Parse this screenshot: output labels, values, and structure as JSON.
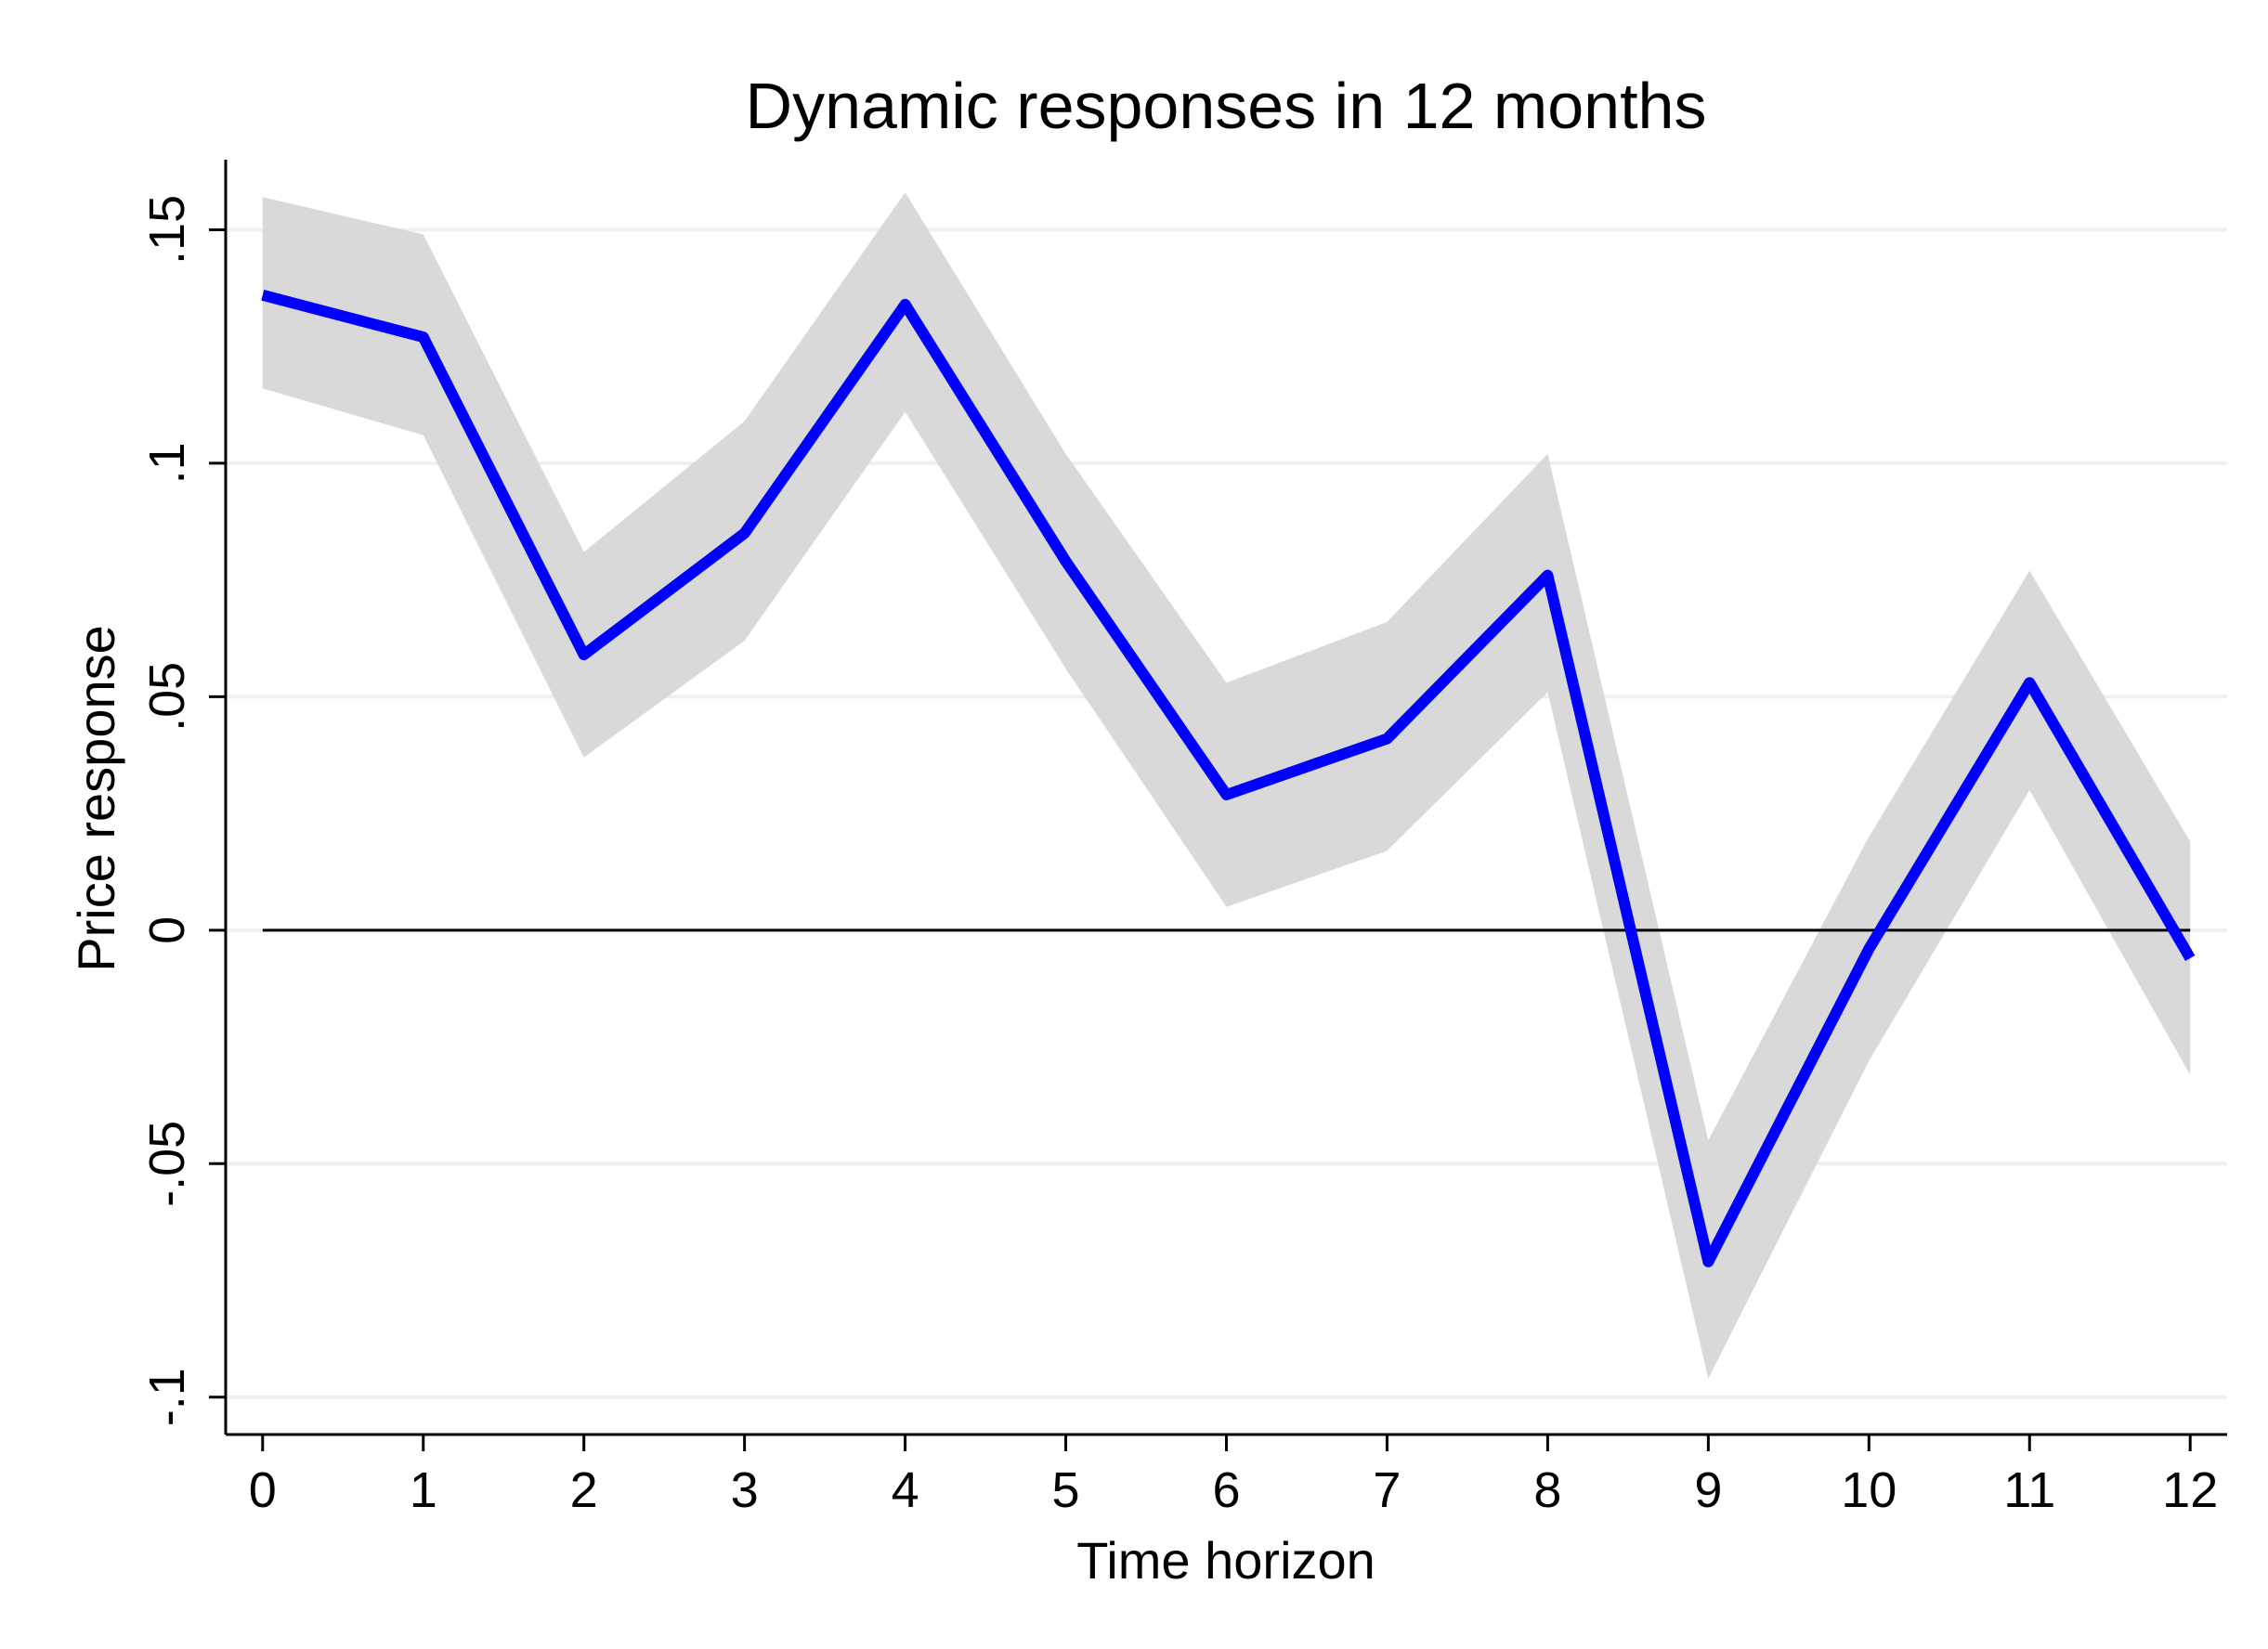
{
  "chart_data": {
    "type": "line",
    "title": "Dynamic responses in 12 months",
    "xlabel": "Time horizon",
    "ylabel": "Price response",
    "x": [
      0,
      1,
      2,
      3,
      4,
      5,
      6,
      7,
      8,
      9,
      10,
      11,
      12
    ],
    "xticks": [
      "0",
      "1",
      "2",
      "3",
      "4",
      "5",
      "6",
      "7",
      "8",
      "9",
      "10",
      "11",
      "12"
    ],
    "yticks": [
      {
        "value": -0.1,
        "label": "-.1"
      },
      {
        "value": -0.05,
        "label": "-.05"
      },
      {
        "value": 0,
        "label": "0"
      },
      {
        "value": 0.05,
        "label": ".05"
      },
      {
        "value": 0.1,
        "label": ".1"
      },
      {
        "value": 0.15,
        "label": ".15"
      }
    ],
    "xlim": [
      -0.23,
      12.23
    ],
    "ylim": [
      -0.108,
      0.165
    ],
    "grid": true,
    "zero_line": true,
    "series": [
      {
        "values": [
          0.136,
          0.127,
          0.059,
          0.085,
          0.134,
          0.079,
          0.029,
          0.041,
          0.076,
          -0.071,
          -0.004,
          0.053,
          -0.006
        ],
        "color": "#0000ff"
      }
    ],
    "confidence_band": {
      "upper": [
        0.157,
        0.149,
        0.081,
        0.109,
        0.158,
        0.102,
        0.053,
        0.066,
        0.102,
        -0.045,
        0.02,
        0.077,
        0.019
      ],
      "lower": [
        0.116,
        0.106,
        0.037,
        0.062,
        0.111,
        0.056,
        0.005,
        0.017,
        0.051,
        -0.096,
        -0.028,
        0.03,
        -0.031
      ],
      "color": "#d9d9d9"
    }
  }
}
